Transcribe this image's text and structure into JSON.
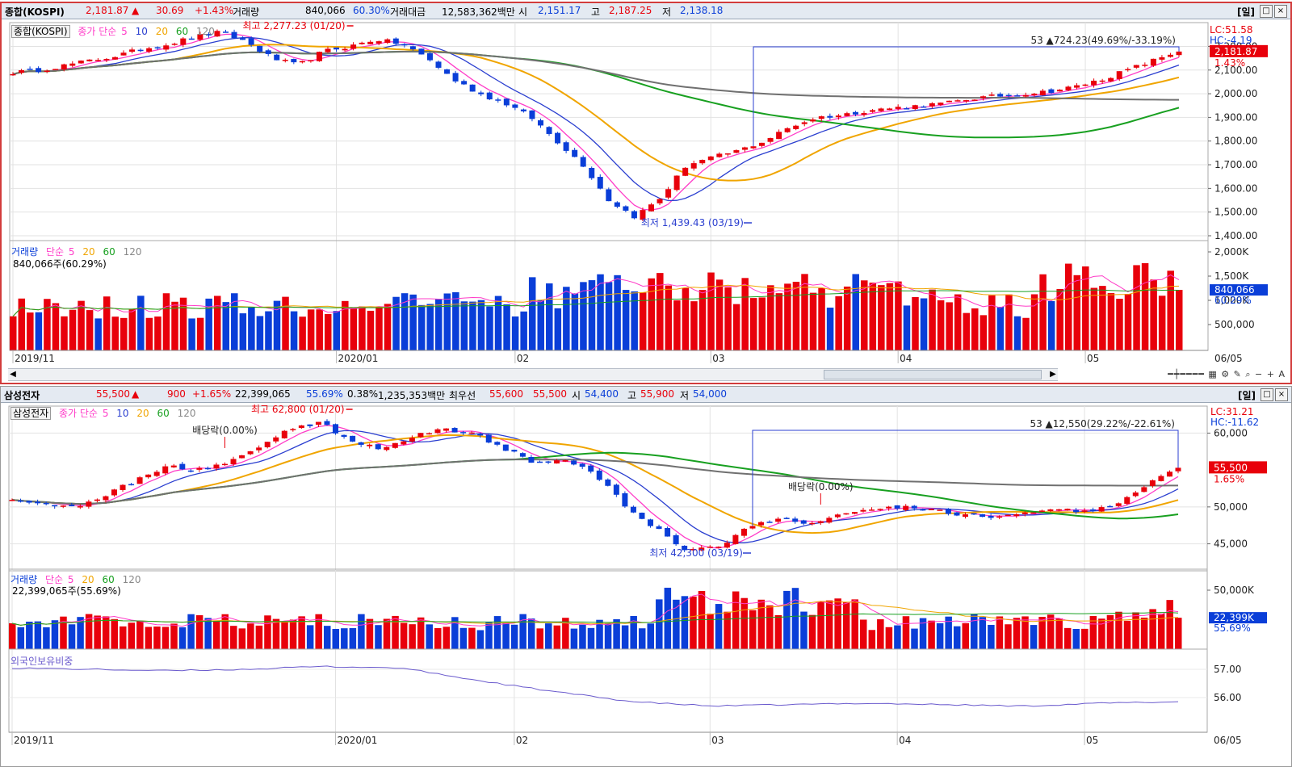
{
  "top": {
    "header": {
      "name": "종합(KOSPI)",
      "price": "2,181.87",
      "arrow": "▲",
      "change": "30.69",
      "change_pct": "+1.43%",
      "volume_label": "거래량",
      "volume": "840,066",
      "volume_ratio": "60.30%",
      "amount_label": "거래대금",
      "amount": "12,583,362백만",
      "open_label": "시",
      "open": "2,151.17",
      "high_label": "고",
      "high": "2,187.25",
      "low_label": "저",
      "low": "2,138.18",
      "period": "[일]"
    },
    "legend": {
      "tag": "종합(KOSPI)",
      "ma_label": "종가 단순",
      "ma": [
        "5",
        "10",
        "20",
        "60",
        "120"
      ]
    },
    "lc": "LC:51.58",
    "hc": "HC:-4.19",
    "annotations": {
      "high": "최고 2,277.23 (01/20)",
      "low": "최저 1,439.43 (03/19)",
      "range": "53 ▲724.23(49.69%/-33.19%)"
    },
    "price_tag": "2,181.87",
    "price_tag_pct": "1.43%",
    "yticks": [
      "2,200.00",
      "2,100.00",
      "2,000.00",
      "1,900.00",
      "1,800.00",
      "1,700.00",
      "1,600.00",
      "1,500.00",
      "1,400.00"
    ],
    "volume_legend": {
      "label": "거래량",
      "ma_label": "단순",
      "ma": [
        "5",
        "20",
        "60",
        "120"
      ],
      "value": "840,066주(60.29%)"
    },
    "vol_yticks": [
      "2,000K",
      "1,500K",
      "1,000K",
      "500,000"
    ],
    "vol_tag": "840,066",
    "vol_tag_pct": "60.29%",
    "xlabels": [
      "2019/11",
      "2020/01",
      "02",
      "03",
      "04",
      "05",
      "06",
      "06/05"
    ]
  },
  "bottom": {
    "header": {
      "name": "삼성전자",
      "price": "55,500",
      "arrow": "▲",
      "change": "900",
      "change_pct": "+1.65%",
      "volume": "22,399,065",
      "volume_ratio": "55.69%",
      "turnover": "0.38%",
      "amount": "1,235,353백만",
      "pref_label": "최우선",
      "ask": "55,600",
      "bid": "55,500",
      "open_label": "시",
      "open": "54,400",
      "high_label": "고",
      "high": "55,900",
      "low_label": "저",
      "low": "54,000",
      "period": "[일]"
    },
    "legend": {
      "tag": "삼성전자",
      "ma_label": "종가 단순",
      "ma": [
        "5",
        "10",
        "20",
        "60",
        "120"
      ]
    },
    "lc": "LC:31.21",
    "hc": "HC:-11.62",
    "annotations": {
      "high": "최고 62,800 (01/20)",
      "low": "최저 42,300 (03/19)",
      "range": "53 ▲12,550(29.22%/-22.61%)",
      "dividend1": "배당락(0.00%)",
      "dividend2": "배당락(0.00%)"
    },
    "price_tag": "55,500",
    "price_tag_pct": "1.65%",
    "yticks": [
      "60,000",
      "50,000",
      "45,000"
    ],
    "volume_legend": {
      "label": "거래량",
      "ma_label": "단순",
      "ma": [
        "5",
        "20",
        "60",
        "120"
      ],
      "value": "22,399,065주(55.69%)"
    },
    "vol_yticks": [
      "50,000K"
    ],
    "vol_tag": "22,399K",
    "vol_tag_pct": "55.69%",
    "foreign_label": "외국인보유비중",
    "foreign_yticks": [
      "57.00",
      "56.00"
    ],
    "xlabels": [
      "2019/11",
      "2020/01",
      "02",
      "03",
      "04",
      "05",
      "06",
      "06/05"
    ]
  },
  "colors": {
    "up": "#e8000b",
    "down": "#0a3ed8",
    "ma5": "#ff3cc8",
    "ma10": "#2b3fd0",
    "ma20": "#f0a500",
    "ma60": "#18a020",
    "ma120": "#707070"
  },
  "chart_data": [
    {
      "type": "candlestick",
      "series_name": "종합(KOSPI)",
      "x": [
        "2019/11",
        "2020/01",
        "02",
        "03",
        "04",
        "05",
        "06",
        "06/05"
      ],
      "close_path": [
        2090,
        2100,
        2120,
        2140,
        2160,
        2190,
        2210,
        2240,
        2260,
        2220,
        2150,
        2120,
        2180,
        2200,
        2230,
        2210,
        2150,
        2060,
        2000,
        1960,
        1900,
        1800,
        1700,
        1550,
        1480,
        1560,
        1700,
        1730,
        1760,
        1800,
        1860,
        1900,
        1910,
        1930,
        1940,
        1950,
        1960,
        1980,
        1990,
        2000,
        2010,
        2030,
        2060,
        2100,
        2140,
        2181.87
      ],
      "ylim": [
        1400,
        2280
      ]
    },
    {
      "type": "candlestick",
      "series_name": "삼성전자",
      "x": [
        "2019/11",
        "2020/01",
        "02",
        "03",
        "04",
        "05",
        "06",
        "06/05"
      ],
      "close_path": [
        51000,
        50500,
        50000,
        51500,
        53500,
        55500,
        55000,
        56000,
        58000,
        60500,
        61500,
        59000,
        58000,
        59500,
        60500,
        60000,
        58000,
        56000,
        56500,
        54500,
        50000,
        47000,
        44000,
        44500,
        47500,
        48500,
        47500,
        49000,
        49500,
        50000,
        49500,
        49000,
        48500,
        49000,
        49500,
        49500,
        50500,
        53000,
        55500
      ],
      "ylim": [
        42000,
        63000
      ]
    }
  ]
}
